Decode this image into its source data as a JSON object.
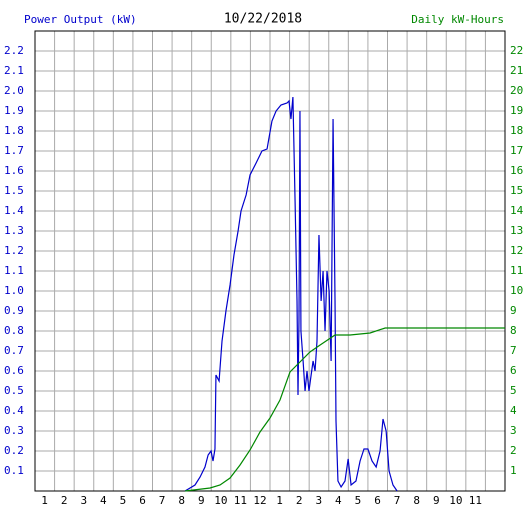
{
  "chart_data": {
    "type": "line",
    "title": "10/22/2018",
    "ylabel": "Power Output (kW)",
    "y2label": "Daily kW-Hours",
    "grid": true,
    "xlim": [
      0,
      24
    ],
    "xticks": [
      1,
      2,
      3,
      4,
      5,
      6,
      7,
      8,
      9,
      10,
      11,
      12,
      {
        "value": 13,
        "label": "1"
      },
      {
        "value": 14,
        "label": "2"
      },
      {
        "value": 15,
        "label": "3"
      },
      {
        "value": 16,
        "label": "4"
      },
      {
        "value": 17,
        "label": "5"
      },
      {
        "value": 18,
        "label": "6"
      },
      {
        "value": 19,
        "label": "7"
      },
      {
        "value": 20,
        "label": "8"
      },
      {
        "value": 21,
        "label": "9"
      },
      {
        "value": 22,
        "label": "10"
      },
      {
        "value": 23,
        "label": "11"
      }
    ],
    "ylim": [
      0,
      2.3
    ],
    "yticks": [
      0.1,
      0.2,
      0.3,
      0.4,
      0.5,
      0.6,
      0.7,
      0.8,
      0.9,
      {
        "value": 1,
        "label": "1.0"
      },
      1.1,
      1.2,
      1.3,
      1.4,
      1.5,
      1.6,
      1.7,
      1.8,
      1.9,
      {
        "value": 2,
        "label": "2.0"
      },
      2.1,
      2.2
    ],
    "y2lim": [
      0,
      23
    ],
    "y2ticks": [
      1,
      2,
      3,
      4,
      5,
      6,
      7,
      8,
      9,
      10,
      11,
      12,
      13,
      14,
      15,
      16,
      17,
      18,
      19,
      20,
      21,
      22
    ],
    "series": [
      {
        "name": "Power Output (kW)",
        "color": "#0000cc",
        "x": [
          7.66,
          8.17,
          8.43,
          8.68,
          8.84,
          8.99,
          9.09,
          9.19,
          9.24,
          9.4,
          9.55,
          9.75,
          9.96,
          10.16,
          10.37,
          10.52,
          10.78,
          10.98,
          11.29,
          11.59,
          11.85,
          12.1,
          12.31,
          12.56,
          12.87,
          12.97,
          13.07,
          13.17,
          13.28,
          13.38,
          13.43,
          13.48,
          13.53,
          13.58,
          13.69,
          13.79,
          13.89,
          13.99,
          14.1,
          14.2,
          14.3,
          14.4,
          14.5,
          14.61,
          14.71,
          14.81,
          14.91,
          15.02,
          15.12,
          15.22,
          15.32,
          15.37,
          15.47,
          15.63,
          15.83,
          15.99,
          16.14,
          16.39,
          16.6,
          16.8,
          17.0,
          17.21,
          17.42,
          17.62,
          17.77,
          17.93,
          18.08,
          18.28,
          18.49
        ],
        "values": [
          0,
          0.03,
          0.07,
          0.12,
          0.18,
          0.2,
          0.15,
          0.21,
          0.58,
          0.55,
          0.75,
          0.9,
          1.03,
          1.18,
          1.3,
          1.4,
          1.48,
          1.58,
          1.64,
          1.7,
          1.71,
          1.85,
          1.9,
          1.93,
          1.94,
          1.95,
          1.86,
          1.97,
          1.45,
          0.95,
          0.48,
          0.85,
          1.9,
          0.8,
          0.65,
          0.5,
          0.6,
          0.5,
          0.58,
          0.65,
          0.6,
          0.75,
          1.28,
          0.95,
          1.1,
          0.8,
          1.1,
          1.0,
          0.65,
          1.86,
          0.95,
          0.35,
          0.05,
          0.02,
          0.05,
          0.16,
          0.03,
          0.05,
          0.15,
          0.21,
          0.21,
          0.15,
          0.12,
          0.2,
          0.36,
          0.3,
          0.1,
          0.03,
          0
        ]
      },
      {
        "name": "Daily kW-Hours",
        "color": "#008800",
        "axis": "y2",
        "x": [
          7.66,
          8.94,
          9.45,
          9.96,
          10.47,
          10.98,
          11.49,
          12.0,
          12.51,
          13.02,
          13.53,
          14.04,
          14.56,
          15.32,
          16.09,
          17.11,
          17.88,
          18.64,
          24
        ],
        "values": [
          0,
          0.15,
          0.3,
          0.65,
          1.3,
          2.05,
          2.95,
          3.65,
          4.55,
          5.95,
          6.45,
          6.95,
          7.3,
          7.8,
          7.8,
          7.9,
          8.15,
          8.15,
          8.15
        ]
      }
    ]
  }
}
